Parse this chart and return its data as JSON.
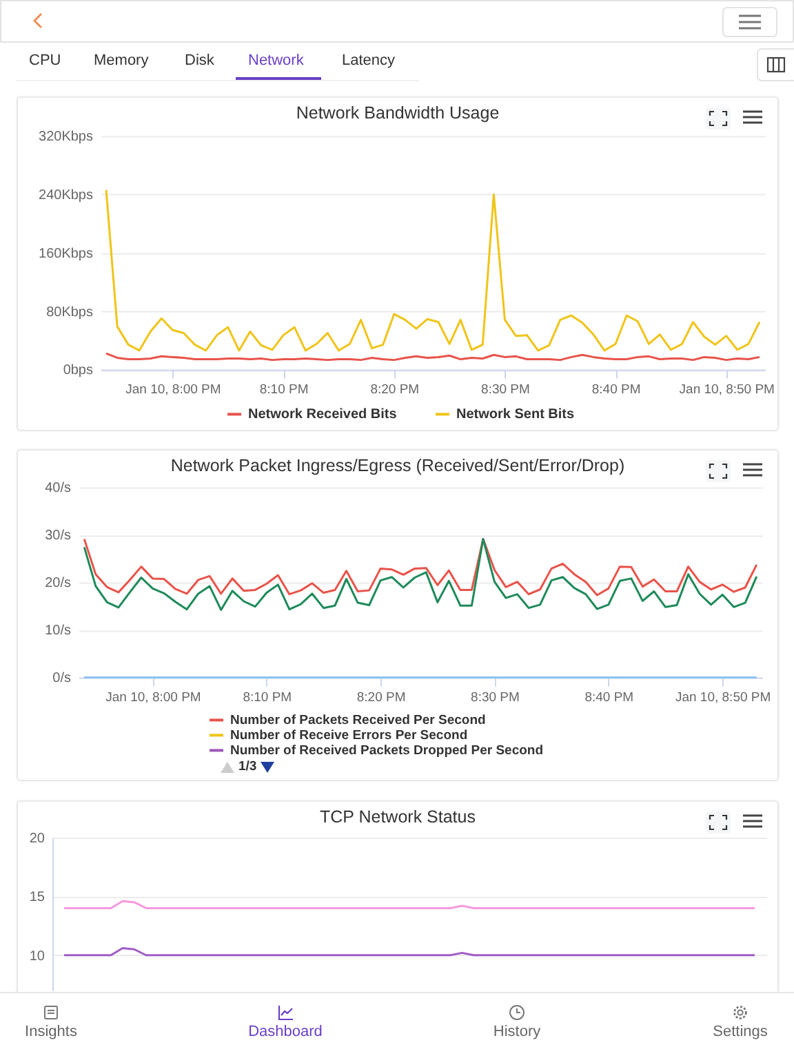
{
  "chart_data": [
    {
      "type": "other",
      "annotations": [
        "CPU",
        "Memory",
        "Disk",
        "Network",
        "Latency"
      ]
    },
    {
      "type": "line",
      "title": "Network Bandwidth Usage",
      "legend": "bottom",
      "grid": "y",
      "x": [
        "--01-10T19:54",
        "--01-10T19:55",
        "--01-10T19:56",
        "--01-10T19:57",
        "--01-10T19:58",
        "--01-10T19:59",
        "--01-10T20:00",
        "--01-10T20:01",
        "--01-10T20:02",
        "--01-10T20:03",
        "--01-10T20:04",
        "--01-10T20:05",
        "--01-10T20:06",
        "--01-10T20:07",
        "--01-10T20:08",
        "--01-10T20:09",
        "--01-10T20:10",
        "--01-10T20:11",
        "--01-10T20:12",
        "--01-10T20:13",
        "--01-10T20:14",
        "--01-10T20:15",
        "--01-10T20:16",
        "--01-10T20:17",
        "--01-10T20:18",
        "--01-10T20:19",
        "--01-10T20:20",
        "--01-10T20:21",
        "--01-10T20:22",
        "--01-10T20:23",
        "--01-10T20:24",
        "--01-10T20:25",
        "--01-10T20:26",
        "--01-10T20:27",
        "--01-10T20:28",
        "--01-10T20:29",
        "--01-10T20:30",
        "--01-10T20:31",
        "--01-10T20:32",
        "--01-10T20:33",
        "--01-10T20:34",
        "--01-10T20:35",
        "--01-10T20:36",
        "--01-10T20:37",
        "--01-10T20:38",
        "--01-10T20:39",
        "--01-10T20:40",
        "--01-10T20:41",
        "--01-10T20:42",
        "--01-10T20:43",
        "--01-10T20:44",
        "--01-10T20:45",
        "--01-10T20:46",
        "--01-10T20:47",
        "--01-10T20:48",
        "--01-10T20:49",
        "--01-10T20:50",
        "--01-10T20:51",
        "--01-10T20:52",
        "--01-10T20:53"
      ],
      "xlim": [
        "--01-10T19:53:30",
        "--01-10T20:53:30"
      ],
      "xticks": [
        {
          "value": "--01-10T20:00",
          "label": "Jan 10, 8:00 PM"
        },
        {
          "value": "--01-10T20:10",
          "label": "8:10 PM"
        },
        {
          "value": "--01-10T20:20",
          "label": "8:20 PM"
        },
        {
          "value": "--01-10T20:30",
          "label": "8:30 PM"
        },
        {
          "value": "--01-10T20:40",
          "label": "8:40 PM"
        },
        {
          "value": "--01-10T20:50",
          "label": "Jan 10, 8:50 PM"
        }
      ],
      "ylim": [
        0,
        320
      ],
      "yticks": [
        {
          "value": 0,
          "label": "0bps"
        },
        {
          "value": 80,
          "label": "80Kbps"
        },
        {
          "value": 160,
          "label": "160Kbps"
        },
        {
          "value": 240,
          "label": "240Kbps"
        },
        {
          "value": 320,
          "label": "320Kbps"
        }
      ],
      "series": [
        {
          "name": "Network Received Bits",
          "color": "#e8534a",
          "values": [
            22,
            16,
            14,
            14,
            15,
            18,
            17,
            16,
            14,
            14,
            14,
            15,
            15,
            14,
            15,
            13,
            14,
            14,
            15,
            14,
            13,
            14,
            14,
            13,
            16,
            14,
            13,
            16,
            18,
            16,
            17,
            19,
            14,
            16,
            15,
            20,
            17,
            18,
            14,
            14,
            14,
            13,
            17,
            20,
            17,
            15,
            14,
            14,
            17,
            18,
            14,
            15,
            15,
            13,
            17,
            16,
            13,
            15,
            14,
            17
          ]
        },
        {
          "name": "Network Sent Bits",
          "color": "#f0c419",
          "values": [
            246,
            59,
            34,
            26,
            52,
            70,
            54,
            50,
            34,
            26,
            47,
            58,
            26,
            52,
            33,
            27,
            47,
            58,
            26,
            35,
            50,
            26,
            35,
            68,
            29,
            34,
            76,
            68,
            56,
            69,
            65,
            35,
            68,
            27,
            34,
            240,
            68,
            46,
            47,
            26,
            33,
            68,
            74,
            64,
            48,
            26,
            35,
            74,
            66,
            35,
            48,
            27,
            35,
            65,
            45,
            34,
            46,
            27,
            35,
            65
          ]
        }
      ]
    },
    {
      "type": "line",
      "title": "Network Packet Ingress/Egress (Received/Sent/Error/Drop)",
      "legend": "bottom",
      "grid": "y",
      "annotations": [
        "1/3"
      ],
      "x": [
        "--01-10T19:54",
        "--01-10T19:55",
        "--01-10T19:56",
        "--01-10T19:57",
        "--01-10T19:58",
        "--01-10T19:59",
        "--01-10T20:00",
        "--01-10T20:01",
        "--01-10T20:02",
        "--01-10T20:03",
        "--01-10T20:04",
        "--01-10T20:05",
        "--01-10T20:06",
        "--01-10T20:07",
        "--01-10T20:08",
        "--01-10T20:09",
        "--01-10T20:10",
        "--01-10T20:11",
        "--01-10T20:12",
        "--01-10T20:13",
        "--01-10T20:14",
        "--01-10T20:15",
        "--01-10T20:16",
        "--01-10T20:17",
        "--01-10T20:18",
        "--01-10T20:19",
        "--01-10T20:20",
        "--01-10T20:21",
        "--01-10T20:22",
        "--01-10T20:23",
        "--01-10T20:24",
        "--01-10T20:25",
        "--01-10T20:26",
        "--01-10T20:27",
        "--01-10T20:28",
        "--01-10T20:29",
        "--01-10T20:30",
        "--01-10T20:31",
        "--01-10T20:32",
        "--01-10T20:33",
        "--01-10T20:34",
        "--01-10T20:35",
        "--01-10T20:36",
        "--01-10T20:37",
        "--01-10T20:38",
        "--01-10T20:39",
        "--01-10T20:40",
        "--01-10T20:41",
        "--01-10T20:42",
        "--01-10T20:43",
        "--01-10T20:44",
        "--01-10T20:45",
        "--01-10T20:46",
        "--01-10T20:47",
        "--01-10T20:48",
        "--01-10T20:49",
        "--01-10T20:50",
        "--01-10T20:51",
        "--01-10T20:52",
        "--01-10T20:53"
      ],
      "xlim": [
        "--01-10T19:53:30",
        "--01-10T20:53:30"
      ],
      "xticks": [
        {
          "value": "--01-10T20:00",
          "label": "Jan 10, 8:00 PM"
        },
        {
          "value": "--01-10T20:10",
          "label": "8:10 PM"
        },
        {
          "value": "--01-10T20:20",
          "label": "8:20 PM"
        },
        {
          "value": "--01-10T20:30",
          "label": "8:30 PM"
        },
        {
          "value": "--01-10T20:40",
          "label": "8:40 PM"
        },
        {
          "value": "--01-10T20:50",
          "label": "Jan 10, 8:50 PM"
        }
      ],
      "ylim": [
        0,
        40
      ],
      "yticks": [
        {
          "value": 0,
          "label": "0/s"
        },
        {
          "value": 10,
          "label": "10/s"
        },
        {
          "value": 20,
          "label": "20/s"
        },
        {
          "value": 30,
          "label": "30/s"
        },
        {
          "value": 40,
          "label": "40/s"
        }
      ],
      "series": [
        {
          "name": "Number of Packets Received Per Second",
          "color": "#e8534a",
          "values": [
            29.1,
            21.7,
            19.0,
            17.9,
            20.5,
            23.3,
            20.8,
            20.7,
            18.6,
            17.6,
            20.5,
            21.3,
            17.6,
            20.8,
            18.2,
            18.4,
            19.7,
            21.5,
            17.5,
            18.3,
            19.8,
            17.8,
            18.4,
            22.4,
            18.1,
            18.3,
            22.9,
            22.7,
            21.6,
            22.9,
            23.0,
            19.4,
            22.5,
            18.4,
            18.4,
            29.1,
            22.6,
            19.0,
            20.1,
            17.5,
            18.5,
            22.9,
            23.9,
            21.7,
            20.1,
            17.3,
            18.7,
            23.3,
            23.2,
            19.1,
            20.6,
            18.1,
            18.1,
            23.3,
            20.1,
            18.5,
            19.5,
            18.0,
            18.9,
            23.7
          ]
        },
        {
          "name": "Number of Receive Errors Per Second",
          "color": "#f0c419",
          "values": [
            null,
            null,
            null,
            null,
            null,
            null,
            null,
            null,
            null,
            null,
            null,
            null,
            null,
            null,
            null,
            null,
            null,
            null,
            null,
            null,
            null,
            null,
            null,
            null,
            null,
            null,
            null,
            null,
            null,
            null,
            null,
            null,
            null,
            null,
            null,
            null,
            null,
            null,
            null,
            null,
            null,
            null,
            null,
            null,
            null,
            null,
            null,
            null,
            null,
            null,
            null,
            null,
            null,
            null,
            null,
            null,
            null,
            null,
            null,
            null
          ]
        },
        {
          "name": "Number of Received Packets Dropped Per Second",
          "color": "#9b59b6",
          "values": [
            null,
            null,
            null,
            null,
            null,
            null,
            null,
            null,
            null,
            null,
            null,
            null,
            null,
            null,
            null,
            null,
            null,
            null,
            null,
            null,
            null,
            null,
            null,
            null,
            null,
            null,
            null,
            null,
            null,
            null,
            null,
            null,
            null,
            null,
            null,
            null,
            null,
            null,
            null,
            null,
            null,
            null,
            null,
            null,
            null,
            null,
            null,
            null,
            null,
            null,
            null,
            null,
            null,
            null,
            null,
            null,
            null,
            null,
            null,
            null
          ]
        },
        {
          "color": "#1e8a5a",
          "values": [
            27.4,
            19.2,
            15.8,
            14.7,
            17.9,
            21.0,
            18.7,
            17.7,
            15.9,
            14.3,
            17.6,
            19.2,
            14.2,
            18.2,
            16.0,
            14.9,
            17.8,
            19.5,
            14.3,
            15.4,
            17.6,
            14.6,
            15.1,
            20.7,
            15.7,
            15.2,
            20.4,
            21.1,
            18.9,
            21.0,
            22.1,
            15.8,
            20.3,
            15.1,
            15.1,
            29.1,
            20.1,
            16.7,
            17.5,
            14.6,
            15.3,
            20.4,
            21.1,
            18.8,
            17.5,
            14.4,
            15.3,
            20.3,
            20.8,
            16.1,
            18.1,
            14.8,
            15.2,
            21.7,
            17.6,
            15.3,
            17.4,
            14.8,
            15.7,
            21.2
          ]
        },
        {
          "color": "#8ec4f0",
          "values": [
            0,
            0,
            0,
            0,
            0,
            0,
            0,
            0,
            0,
            0,
            0,
            0,
            0,
            0,
            0,
            0,
            0,
            0,
            0,
            0,
            0,
            0,
            0,
            0,
            0,
            0,
            0,
            0,
            0,
            0,
            0,
            0,
            0,
            0,
            0,
            0,
            0,
            0,
            0,
            0,
            0,
            0,
            0,
            0,
            0,
            0,
            0,
            0,
            0,
            0,
            0,
            0,
            0,
            0,
            0,
            0,
            0,
            0,
            0,
            0
          ]
        }
      ]
    },
    {
      "type": "line",
      "title": "TCP Network Status",
      "grid": "y",
      "tick_labels": "y",
      "categories": [
        null,
        null,
        null,
        null,
        null,
        null,
        null,
        null,
        null,
        null,
        null,
        null,
        null,
        null,
        null,
        null,
        null,
        null,
        null,
        null,
        null,
        null,
        null,
        null,
        null,
        null,
        null,
        null,
        null,
        null,
        null,
        null,
        null,
        null,
        null,
        null,
        null,
        null,
        null,
        null,
        null,
        null,
        null,
        null,
        null,
        null,
        null,
        null,
        null,
        null,
        null,
        null,
        null,
        null,
        null,
        null,
        null,
        null,
        null,
        null
      ],
      "ylim": [
        7,
        20
      ],
      "yticks": [
        10,
        15,
        20
      ],
      "series": [
        {
          "color": "#f799dc",
          "values": [
            14,
            14,
            14,
            14,
            14,
            14.6,
            14.5,
            14,
            14,
            14,
            14,
            14,
            14,
            14,
            14,
            14,
            14,
            14,
            14,
            14,
            14,
            14,
            14,
            14,
            14,
            14,
            14,
            14,
            14,
            14,
            14,
            14,
            14,
            14,
            14.2,
            14,
            14,
            14,
            14,
            14,
            14,
            14,
            14,
            14,
            14,
            14,
            14,
            14,
            14,
            14,
            14,
            14,
            14,
            14,
            14,
            14,
            14,
            14,
            14,
            14
          ]
        },
        {
          "color": "#a05cc6",
          "values": [
            10,
            10,
            10,
            10,
            10,
            10.6,
            10.5,
            10,
            10,
            10,
            10,
            10,
            10,
            10,
            10,
            10,
            10,
            10,
            10,
            10,
            10,
            10,
            10,
            10,
            10,
            10,
            10,
            10,
            10,
            10,
            10,
            10,
            10,
            10,
            10.2,
            10,
            10,
            10,
            10,
            10,
            10,
            10,
            10,
            10,
            10,
            10,
            10,
            10,
            10,
            10,
            10,
            10,
            10,
            10,
            10,
            10,
            10,
            10,
            10,
            10
          ]
        }
      ]
    },
    {
      "type": "other",
      "annotations": [
        "Insights",
        "Dashboard",
        "History",
        "Settings"
      ]
    }
  ]
}
